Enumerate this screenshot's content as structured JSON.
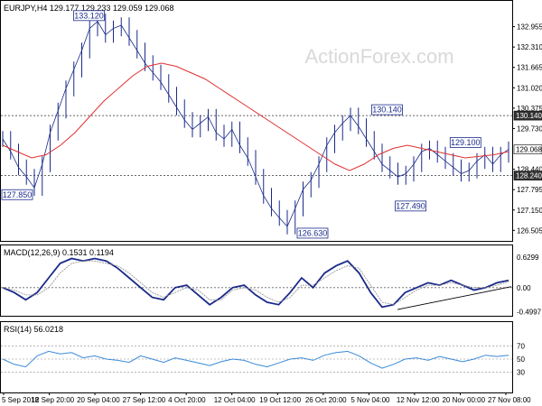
{
  "watermark": "ActionForex.com",
  "colors": {
    "price": "#1a2a8a",
    "ma": "#e03030",
    "macd": "#1a2a8a",
    "signal": "#8a8a8a",
    "rsi": "#3a8ad8",
    "level_line": "#333333",
    "trend_line": "#000000",
    "axis_text": "#000000",
    "watermark": "#d9d9d9",
    "label_border": "#1a2a8a"
  },
  "chart_data": [
    {
      "type": "line",
      "panel": "price",
      "header": "EURJPY,H4   129.177 129.233 129.059 129.068",
      "ylim": [
        126.2,
        133.4
      ],
      "y_ticks": [
        "132.955",
        "132.310",
        "131.665",
        "131.020",
        "130.375",
        "129.730",
        "128.440",
        "127.795",
        "127.150",
        "126.505"
      ],
      "last_value_label": "129.068",
      "horizontal_levels": [
        {
          "value": 130.14,
          "label": "130.140"
        },
        {
          "value": 128.24,
          "label": "128.240"
        }
      ],
      "callouts": [
        {
          "text": "133.120",
          "x": 22,
          "y": 133.12
        },
        {
          "text": "130.140",
          "x": 98,
          "y": 130.14
        },
        {
          "text": "129.100",
          "x": 118,
          "y": 129.1
        },
        {
          "text": "127.850",
          "x": 1,
          "y": 127.85
        },
        {
          "text": "127.490",
          "x": 104,
          "y": 127.49
        },
        {
          "text": "126.630",
          "x": 79,
          "y": 126.63
        }
      ],
      "series": [
        {
          "values": [
            129.4,
            129.0,
            128.5,
            128.2,
            127.85,
            128.6,
            129.6,
            130.3,
            131.0,
            131.6,
            132.2,
            132.9,
            133.12,
            132.7,
            132.9,
            133.0,
            132.6,
            132.2,
            131.8,
            131.5,
            131.2,
            130.8,
            130.4,
            130.0,
            129.7,
            129.9,
            130.1,
            129.6,
            129.4,
            129.7,
            129.2,
            128.8,
            128.2,
            127.6,
            127.2,
            126.9,
            126.63,
            127.2,
            127.8,
            128.1,
            128.6,
            129.2,
            129.6,
            129.9,
            130.14,
            129.8,
            129.4,
            129.0,
            128.6,
            128.4,
            128.2,
            128.3,
            128.6,
            129.0,
            129.1,
            128.9,
            128.7,
            128.5,
            128.3,
            128.4,
            128.7,
            128.9,
            128.6,
            128.9,
            129.068
          ],
          "x_index_step": 2
        },
        {
          "values": [
            129.2,
            129.0,
            128.8,
            128.9,
            129.2,
            129.6,
            130.1,
            130.6,
            131.0,
            131.4,
            131.7,
            131.8,
            131.7,
            131.5,
            131.3,
            131.0,
            130.7,
            130.4,
            130.1,
            129.8,
            129.5,
            129.2,
            128.9,
            128.6,
            128.4,
            128.6,
            128.9,
            129.1,
            129.2,
            129.1,
            129.0,
            128.9,
            128.8,
            128.85,
            128.9,
            129.0
          ],
          "x_index_step": 3.66
        }
      ]
    },
    {
      "type": "line",
      "panel": "macd",
      "header": "MACD(12,26,9) 0.1531 0.1194",
      "ylim": [
        -0.56,
        0.72
      ],
      "y_ticks": [
        "0.6299",
        "0.00",
        "-0.4997"
      ],
      "series": [
        {
          "values": [
            0.0,
            -0.1,
            -0.25,
            -0.1,
            0.2,
            0.5,
            0.6,
            0.55,
            0.6,
            0.55,
            0.4,
            0.2,
            0.0,
            -0.2,
            -0.25,
            0.0,
            0.05,
            -0.15,
            -0.35,
            -0.2,
            0.0,
            0.05,
            -0.15,
            -0.3,
            -0.35,
            -0.1,
            0.2,
            0.0,
            0.3,
            0.45,
            0.55,
            0.3,
            -0.1,
            -0.4,
            -0.35,
            -0.1,
            0.0,
            0.1,
            0.05,
            0.15,
            0.05,
            -0.05,
            0.0,
            0.1,
            0.15
          ]
        },
        {
          "values": [
            0.0,
            -0.05,
            -0.15,
            -0.15,
            0.0,
            0.3,
            0.5,
            0.55,
            0.55,
            0.5,
            0.45,
            0.3,
            0.1,
            -0.1,
            -0.2,
            -0.1,
            0.0,
            -0.05,
            -0.25,
            -0.25,
            -0.05,
            0.0,
            -0.05,
            -0.2,
            -0.3,
            -0.2,
            0.05,
            0.05,
            0.2,
            0.35,
            0.45,
            0.4,
            0.05,
            -0.3,
            -0.35,
            -0.2,
            -0.05,
            0.05,
            0.05,
            0.1,
            0.05,
            0.0,
            0.0,
            0.05,
            0.12
          ]
        }
      ]
    },
    {
      "type": "line",
      "panel": "rsi",
      "header": "RSI(14) 56.0218",
      "ylim": [
        0,
        100
      ],
      "y_ticks": [
        "70",
        "50",
        "30"
      ],
      "series": [
        {
          "values": [
            50,
            42,
            38,
            55,
            62,
            58,
            60,
            52,
            55,
            50,
            48,
            45,
            55,
            50,
            45,
            52,
            48,
            44,
            40,
            46,
            50,
            48,
            42,
            38,
            44,
            50,
            52,
            48,
            56,
            60,
            62,
            55,
            44,
            36,
            42,
            50,
            52,
            48,
            54,
            50,
            46,
            50,
            56,
            54,
            56
          ]
        }
      ]
    }
  ],
  "x_ticks": [
    "5 Sep 2018",
    "12 Sep 20:00",
    "20 Sep 04:00",
    "27 Sep 12:00",
    "4 Oct 20:00",
    "12 Oct 04:00",
    "19 Oct 12:00",
    "26 Oct 20:00",
    "5 Nov 04:00",
    "12 Nov 12:00",
    "20 Nov 00:00",
    "27 Nov 08:00"
  ]
}
